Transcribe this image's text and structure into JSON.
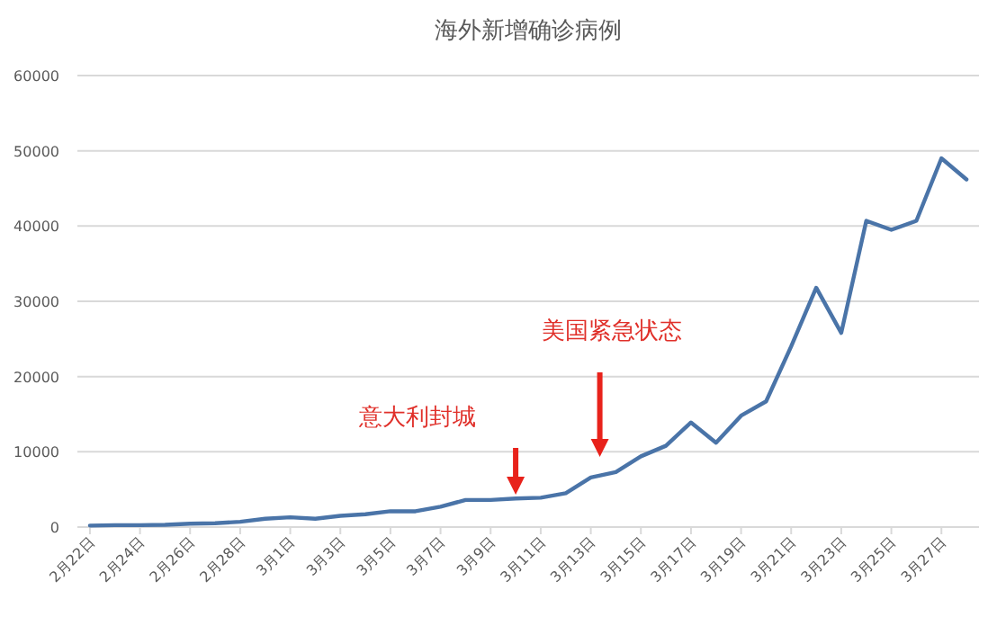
{
  "chart_data": {
    "type": "line",
    "title": "海外新增确诊病例",
    "categories": [
      "2月22日",
      null,
      "2月24日",
      null,
      "2月26日",
      null,
      "2月28日",
      null,
      "3月1日",
      null,
      "3月3日",
      null,
      "3月5日",
      null,
      "3月7日",
      null,
      "3月9日",
      null,
      "3月11日",
      null,
      "3月13日",
      null,
      "3月15日",
      null,
      "3月17日",
      null,
      "3月19日",
      null,
      "3月21日",
      null,
      "3月23日",
      null,
      "3月25日",
      null,
      "3月27日",
      null
    ],
    "series": [
      {
        "color": "#4a74a8",
        "values": [
          200,
          250,
          250,
          300,
          450,
          500,
          700,
          1100,
          1300,
          1100,
          1500,
          1700,
          2100,
          2100,
          2700,
          3600,
          3600,
          3800,
          3900,
          4500,
          6600,
          7300,
          9400,
          10800,
          13900,
          11200,
          14800,
          16700,
          24000,
          31800,
          25800,
          40700,
          39500,
          40700,
          49000,
          46200
        ]
      }
    ],
    "ylim": [
      0,
      60000
    ],
    "yticks": [
      0,
      10000,
      20000,
      30000,
      40000,
      50000,
      60000
    ],
    "grid": "y",
    "annotations": [
      "意大利封城",
      "美国紧急状态"
    ]
  }
}
